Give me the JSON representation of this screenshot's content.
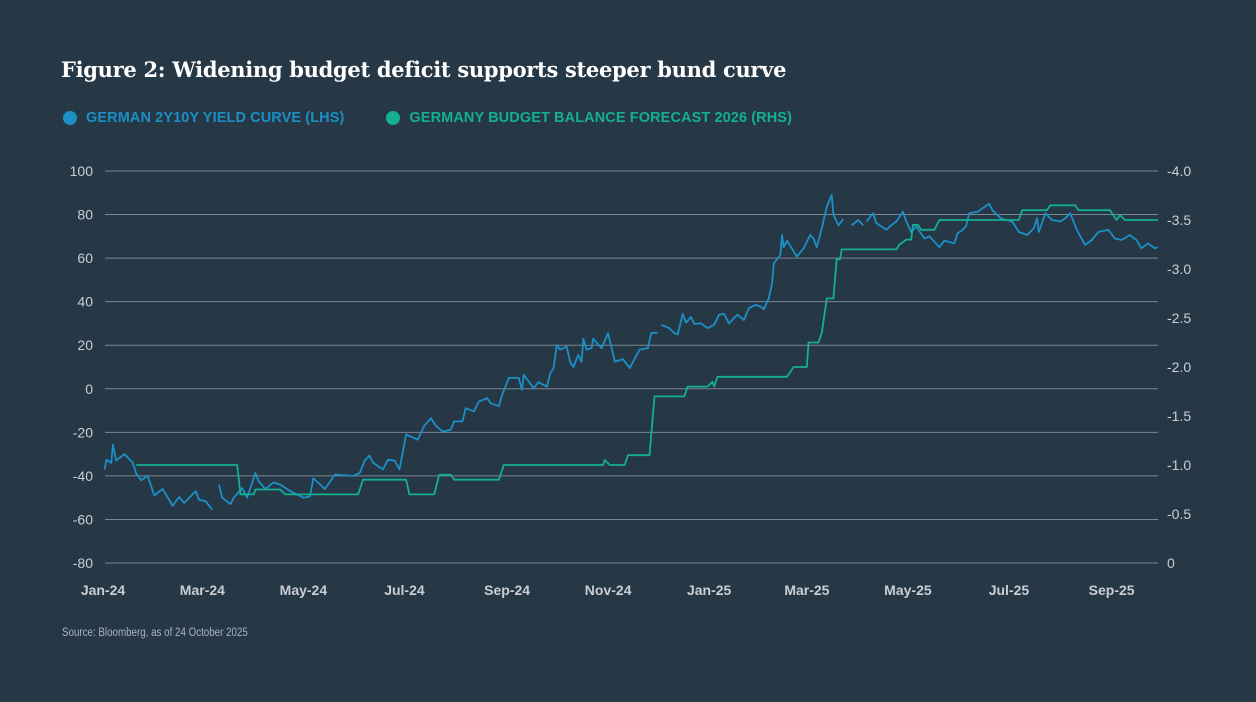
{
  "title": "Figure 2: Widening budget deficit supports steeper bund curve",
  "source": "Source: Bloomberg, as of 24 October 2025",
  "colors": {
    "background": "#263746",
    "blue": "#1b90c6",
    "green": "#14b092",
    "grid": "#7b8792"
  },
  "chart_data": {
    "type": "line",
    "title": "Figure 2: Widening budget deficit supports steeper bund curve",
    "legend_placement": "top-left",
    "grid": "horizontal",
    "x_range": [
      "2024-01-01",
      "2025-09-29"
    ],
    "x_ticks": [
      {
        "label": "Jan-24",
        "date": "2024-01-01"
      },
      {
        "label": "Mar-24",
        "date": "2024-03-01"
      },
      {
        "label": "May-24",
        "date": "2024-05-01"
      },
      {
        "label": "Jul-24",
        "date": "2024-07-01"
      },
      {
        "label": "Sep-24",
        "date": "2024-09-01"
      },
      {
        "label": "Nov-24",
        "date": "2024-11-01"
      },
      {
        "label": "Jan-25",
        "date": "2025-01-01"
      },
      {
        "label": "Mar-25",
        "date": "2025-03-01"
      },
      {
        "label": "May-25",
        "date": "2025-05-01"
      },
      {
        "label": "Jul-25",
        "date": "2025-07-01"
      },
      {
        "label": "Sep-25",
        "date": "2025-09-01"
      }
    ],
    "y_left": {
      "range": [
        -80,
        100
      ],
      "ticks": [
        "100",
        "80",
        "60",
        "40",
        "20",
        "0",
        "-20",
        "-40",
        "-60",
        "-80"
      ]
    },
    "y_right": {
      "range": [
        0,
        -4.0
      ],
      "inverted": true,
      "ticks": [
        "-4.0",
        "-3.5",
        "-3.0",
        "-2.5",
        "-2.0",
        "-1.5",
        "-1.0",
        "-0.5",
        "0"
      ]
    },
    "series": [
      {
        "name": "GERMAN 2Y10Y YIELD CURVE (LHS)",
        "axis": "left",
        "color": "#1b90c6",
        "points": [
          [
            "2024-01-02",
            -37
          ],
          [
            "2024-01-03",
            -32.6
          ],
          [
            "2024-01-06",
            -34
          ],
          [
            "2024-01-07",
            -25.7
          ],
          [
            "2024-01-09",
            -33
          ],
          [
            "2024-01-14",
            -30
          ],
          [
            "2024-01-19",
            -34
          ],
          [
            "2024-01-21",
            -38.7
          ],
          [
            "2024-01-24",
            -42
          ],
          [
            "2024-01-28",
            -40
          ],
          [
            "2024-02-01",
            -49
          ],
          [
            "2024-02-06",
            -46
          ],
          [
            "2024-02-12",
            -53.7
          ],
          [
            "2024-02-16",
            -49.7
          ],
          [
            "2024-02-19",
            -52.4
          ],
          [
            "2024-02-26",
            -47
          ],
          [
            "2024-02-28",
            -51
          ],
          [
            "2024-03-03",
            -51.7
          ],
          [
            "2024-03-07",
            -55.5
          ],
          null,
          [
            "2024-03-11",
            -44
          ],
          [
            "2024-03-13",
            -50
          ],
          [
            "2024-03-18",
            -53
          ],
          [
            "2024-03-20",
            -50
          ],
          [
            "2024-03-25",
            -45.6
          ],
          [
            "2024-03-28",
            -50
          ],
          [
            "2024-04-02",
            -38.7
          ],
          [
            "2024-04-04",
            -42.5
          ],
          [
            "2024-04-08",
            -46
          ],
          [
            "2024-04-13",
            -43
          ],
          [
            "2024-04-17",
            -44
          ],
          [
            "2024-04-23",
            -47
          ],
          [
            "2024-05-01",
            -50
          ],
          [
            "2024-05-05",
            -49.4
          ],
          [
            "2024-05-07",
            -41
          ],
          [
            "2024-05-14",
            -46
          ],
          [
            "2024-05-20",
            -39.4
          ],
          [
            "2024-05-31",
            -40
          ],
          [
            "2024-06-04",
            -38.7
          ],
          [
            "2024-06-07",
            -33
          ],
          [
            "2024-06-10",
            -30.7
          ],
          [
            "2024-06-12",
            -34
          ],
          [
            "2024-06-18",
            -37
          ],
          [
            "2024-06-21",
            -32.6
          ],
          [
            "2024-06-25",
            -33
          ],
          [
            "2024-06-28",
            -37
          ],
          [
            "2024-07-02",
            -21
          ],
          [
            "2024-07-09",
            -23.4
          ],
          [
            "2024-07-13",
            -17
          ],
          [
            "2024-07-17",
            -13.5
          ],
          [
            "2024-07-20",
            -17
          ],
          [
            "2024-07-24",
            -19.6
          ],
          [
            "2024-07-29",
            -18.8
          ],
          [
            "2024-07-31",
            -15
          ],
          [
            "2024-08-05",
            -15
          ],
          [
            "2024-08-07",
            -8.9
          ],
          [
            "2024-08-12",
            -10.4
          ],
          [
            "2024-08-15",
            -5.8
          ],
          [
            "2024-08-20",
            -4.3
          ],
          [
            "2024-08-22",
            -6.6
          ],
          [
            "2024-08-27",
            -8
          ],
          [
            "2024-08-29",
            -2.8
          ],
          [
            "2024-09-02",
            5
          ],
          [
            "2024-09-08",
            5
          ],
          [
            "2024-09-10",
            -0.5
          ],
          [
            "2024-09-11",
            6.4
          ],
          [
            "2024-09-17",
            0.3
          ],
          [
            "2024-09-20",
            3
          ],
          [
            "2024-09-25",
            1
          ],
          [
            "2024-09-27",
            7
          ],
          [
            "2024-09-29",
            9.5
          ],
          [
            "2024-10-01",
            20
          ],
          [
            "2024-10-03",
            18
          ],
          [
            "2024-10-07",
            19.4
          ],
          [
            "2024-10-09",
            12.5
          ],
          [
            "2024-10-11",
            10
          ],
          [
            "2024-10-14",
            15.6
          ],
          [
            "2024-10-16",
            12.2
          ],
          [
            "2024-10-17",
            23
          ],
          [
            "2024-10-19",
            18
          ],
          [
            "2024-10-22",
            18.7
          ],
          [
            "2024-10-23",
            23
          ],
          [
            "2024-10-28",
            18.7
          ],
          [
            "2024-11-01",
            25.5
          ],
          [
            "2024-11-05",
            12.5
          ],
          [
            "2024-11-10",
            13.6
          ],
          [
            "2024-11-14",
            9.5
          ],
          [
            "2024-11-20",
            18
          ],
          [
            "2024-11-25",
            18.7
          ],
          [
            "2024-11-27",
            25.5
          ],
          [
            "2024-12-01",
            25.8
          ],
          null,
          [
            "2024-12-03",
            29.4
          ],
          [
            "2024-12-08",
            27.8
          ],
          [
            "2024-12-11",
            25.5
          ],
          [
            "2024-12-13",
            25
          ],
          [
            "2024-12-16",
            34.4
          ],
          [
            "2024-12-18",
            30.4
          ],
          [
            "2024-12-21",
            33
          ],
          [
            "2024-12-23",
            29.8
          ],
          [
            "2024-12-27",
            30
          ],
          [
            "2024-12-31",
            27.8
          ],
          [
            "2025-01-04",
            29.4
          ],
          [
            "2025-01-07",
            34
          ],
          [
            "2025-01-10",
            34.4
          ],
          [
            "2025-01-13",
            30
          ],
          [
            "2025-01-18",
            34
          ],
          [
            "2025-01-22",
            31.6
          ],
          [
            "2025-01-25",
            37
          ],
          [
            "2025-01-29",
            38.5
          ],
          [
            "2025-02-01",
            37.8
          ],
          [
            "2025-02-03",
            36.5
          ],
          [
            "2025-02-06",
            41.6
          ],
          [
            "2025-02-08",
            48.5
          ],
          [
            "2025-02-09",
            57.6
          ],
          [
            "2025-02-13",
            61.5
          ],
          [
            "2025-02-14",
            70.6
          ],
          [
            "2025-02-15",
            65
          ],
          [
            "2025-02-17",
            68
          ],
          [
            "2025-02-23",
            60.7
          ],
          [
            "2025-02-27",
            64.5
          ],
          [
            "2025-03-03",
            70.6
          ],
          [
            "2025-03-05",
            69
          ],
          [
            "2025-03-07",
            65
          ],
          [
            "2025-03-10",
            73.7
          ],
          [
            "2025-03-13",
            83.6
          ],
          [
            "2025-03-16",
            89
          ],
          [
            "2025-03-17",
            80
          ],
          [
            "2025-03-20",
            75
          ],
          [
            "2025-03-23",
            78
          ],
          null,
          [
            "2025-03-28",
            75
          ],
          [
            "2025-04-01",
            77.5
          ],
          [
            "2025-04-04",
            75
          ],
          null,
          [
            "2025-04-06",
            76.8
          ],
          [
            "2025-04-10",
            80.6
          ],
          [
            "2025-04-12",
            76
          ],
          [
            "2025-04-18",
            73
          ],
          [
            "2025-04-20",
            74.5
          ],
          [
            "2025-04-24",
            76.8
          ],
          [
            "2025-04-28",
            81.3
          ],
          [
            "2025-04-30",
            76.8
          ],
          [
            "2025-05-03",
            72
          ],
          [
            "2025-05-06",
            74.5
          ],
          [
            "2025-05-11",
            69
          ],
          [
            "2025-05-14",
            70
          ],
          [
            "2025-05-20",
            65
          ],
          [
            "2025-05-23",
            68
          ],
          [
            "2025-05-29",
            66.8
          ],
          [
            "2025-05-31",
            71.4
          ],
          [
            "2025-06-03",
            73
          ],
          [
            "2025-06-05",
            74.5
          ],
          [
            "2025-06-07",
            80.6
          ],
          [
            "2025-06-12",
            81.3
          ],
          [
            "2025-06-19",
            85
          ],
          [
            "2025-06-21",
            82
          ],
          [
            "2025-06-26",
            78.3
          ],
          [
            "2025-07-03",
            76.8
          ],
          [
            "2025-07-07",
            72
          ],
          [
            "2025-07-12",
            70.6
          ],
          [
            "2025-07-16",
            73.7
          ],
          [
            "2025-07-18",
            78.3
          ],
          [
            "2025-07-19",
            72
          ],
          [
            "2025-07-23",
            80.6
          ],
          [
            "2025-07-27",
            77.5
          ],
          [
            "2025-08-01",
            76.8
          ],
          [
            "2025-08-04",
            78.3
          ],
          [
            "2025-08-07",
            80.6
          ],
          [
            "2025-08-11",
            73
          ],
          [
            "2025-08-16",
            66
          ],
          [
            "2025-08-20",
            68.3
          ],
          [
            "2025-08-24",
            72
          ],
          [
            "2025-08-30",
            73
          ],
          [
            "2025-09-03",
            69
          ],
          [
            "2025-09-07",
            68.3
          ],
          [
            "2025-09-12",
            70.6
          ],
          [
            "2025-09-16",
            68.3
          ],
          [
            "2025-09-19",
            64.5
          ],
          [
            "2025-09-23",
            66.8
          ],
          [
            "2025-09-27",
            64.5
          ],
          [
            "2025-09-29",
            65
          ]
        ]
      },
      {
        "name": "GERMANY BUDGET BALANCE FORECAST 2026 (RHS)",
        "axis": "right",
        "color": "#14b092",
        "points": [
          [
            "2024-01-21",
            -1.0
          ],
          [
            "2024-03-22",
            -1.0
          ],
          [
            "2024-03-24",
            -0.7
          ],
          [
            "2024-04-01",
            -0.7
          ],
          [
            "2024-04-02",
            -0.75
          ],
          [
            "2024-04-17",
            -0.75
          ],
          [
            "2024-04-20",
            -0.7
          ],
          [
            "2024-06-03",
            -0.7
          ],
          [
            "2024-06-06",
            -0.85
          ],
          [
            "2024-07-02",
            -0.85
          ],
          [
            "2024-07-04",
            -0.7
          ],
          [
            "2024-07-19",
            -0.7
          ],
          [
            "2024-07-22",
            -0.9
          ],
          [
            "2024-07-29",
            -0.9
          ],
          [
            "2024-07-31",
            -0.85
          ],
          [
            "2024-08-27",
            -0.85
          ],
          [
            "2024-08-28",
            -0.9
          ],
          [
            "2024-08-30",
            -1.0
          ],
          [
            "2024-10-29",
            -1.0
          ],
          [
            "2024-10-30",
            -1.05
          ],
          [
            "2024-11-02",
            -1.0
          ],
          [
            "2024-11-11",
            -1.0
          ],
          [
            "2024-11-13",
            -1.1
          ],
          [
            "2024-11-26",
            -1.1
          ],
          [
            "2024-11-29",
            -1.7
          ],
          [
            "2024-12-17",
            -1.7
          ],
          [
            "2024-12-19",
            -1.8
          ],
          [
            "2024-12-31",
            -1.8
          ],
          [
            "2025-01-03",
            -1.85
          ],
          [
            "2025-01-04",
            -1.8
          ],
          [
            "2025-01-06",
            -1.9
          ],
          [
            "2025-02-17",
            -1.9
          ],
          [
            "2025-02-21",
            -2.0
          ],
          [
            "2025-03-01",
            -2.0
          ],
          [
            "2025-03-02",
            -2.25
          ],
          [
            "2025-03-08",
            -2.25
          ],
          [
            "2025-03-10",
            -2.35
          ],
          [
            "2025-03-13",
            -2.7
          ],
          [
            "2025-03-17",
            -2.7
          ],
          [
            "2025-03-19",
            -3.1
          ],
          [
            "2025-03-21",
            -3.1
          ],
          [
            "2025-03-22",
            -3.2
          ],
          [
            "2025-04-24",
            -3.2
          ],
          [
            "2025-04-26",
            -3.25
          ],
          [
            "2025-04-30",
            -3.3
          ],
          [
            "2025-05-03",
            -3.3
          ],
          [
            "2025-05-04",
            -3.45
          ],
          [
            "2025-05-07",
            -3.45
          ],
          [
            "2025-05-09",
            -3.4
          ],
          [
            "2025-05-17",
            -3.4
          ],
          [
            "2025-05-20",
            -3.5
          ],
          [
            "2025-07-07",
            -3.5
          ],
          [
            "2025-07-09",
            -3.6
          ],
          [
            "2025-07-24",
            -3.6
          ],
          [
            "2025-07-26",
            -3.65
          ],
          [
            "2025-08-10",
            -3.65
          ],
          [
            "2025-08-12",
            -3.6
          ],
          [
            "2025-08-31",
            -3.6
          ],
          [
            "2025-09-04",
            -3.5
          ],
          [
            "2025-09-06",
            -3.55
          ],
          [
            "2025-09-09",
            -3.5
          ],
          [
            "2025-09-29",
            -3.5
          ]
        ]
      }
    ]
  }
}
